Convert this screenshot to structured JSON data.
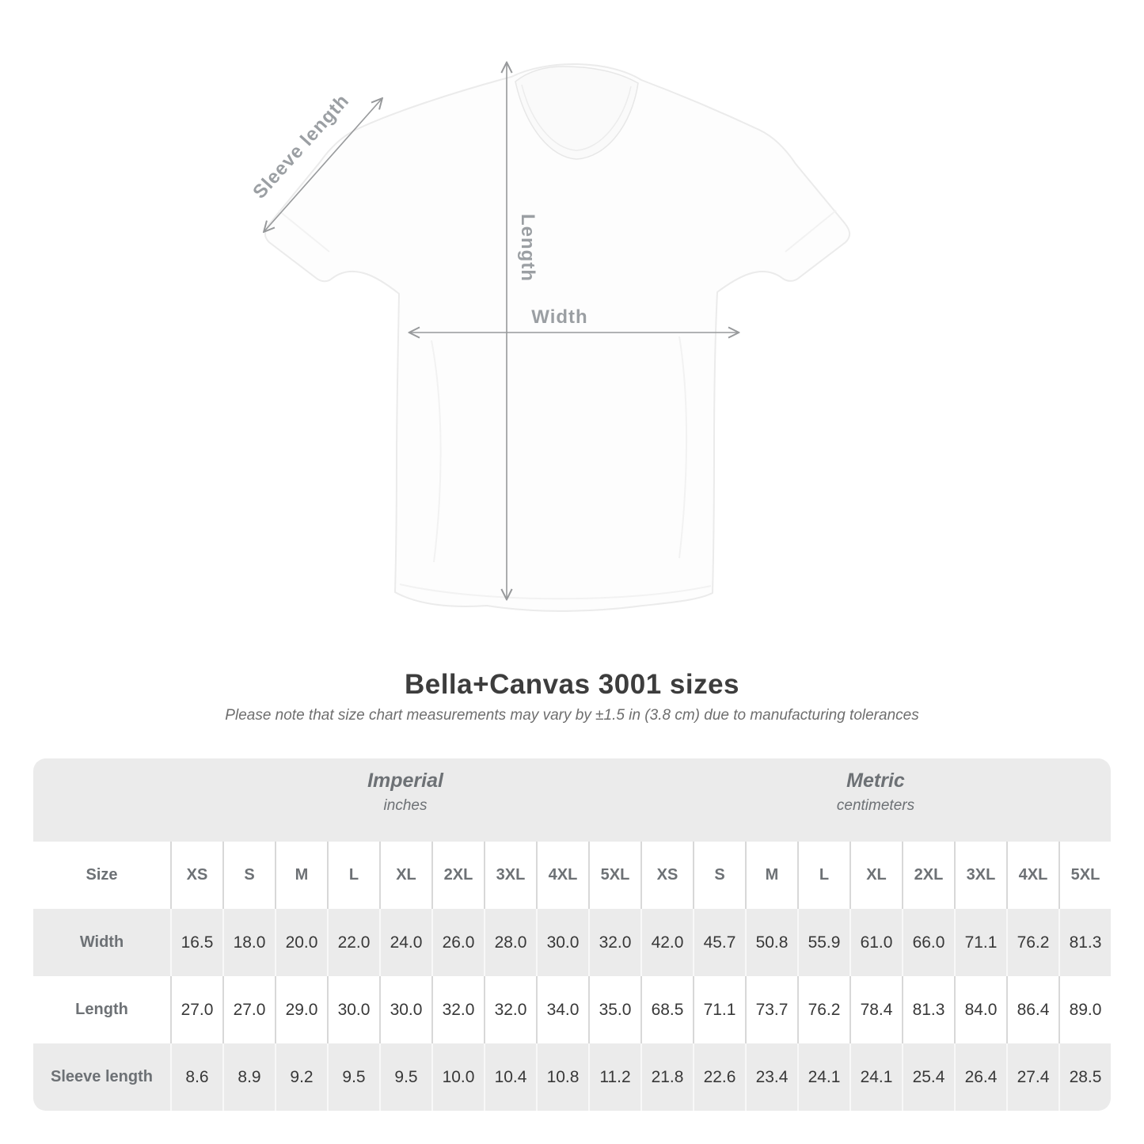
{
  "diagram": {
    "sleeve_length_label": "Sleeve length",
    "length_label": "Length",
    "width_label": "Width"
  },
  "title": "Bella+Canvas 3001 sizes",
  "subtitle": "Please note that size chart measurements may vary by ±1.5 in (3.8 cm) due to manufacturing tolerances",
  "chart_data": {
    "type": "table",
    "title": "Bella+Canvas 3001 sizes",
    "size_column_header": "Size",
    "sizes": [
      "XS",
      "S",
      "M",
      "L",
      "XL",
      "2XL",
      "3XL",
      "4XL",
      "5XL"
    ],
    "sections": [
      {
        "name": "Imperial",
        "unit": "inches"
      },
      {
        "name": "Metric",
        "unit": "centimeters"
      }
    ],
    "rows": [
      {
        "label": "Width",
        "imperial": [
          "16.5",
          "18.0",
          "20.0",
          "22.0",
          "24.0",
          "26.0",
          "28.0",
          "30.0",
          "32.0"
        ],
        "metric": [
          "42.0",
          "45.7",
          "50.8",
          "55.9",
          "61.0",
          "66.0",
          "71.1",
          "76.2",
          "81.3"
        ]
      },
      {
        "label": "Length",
        "imperial": [
          "27.0",
          "27.0",
          "29.0",
          "30.0",
          "30.0",
          "32.0",
          "32.0",
          "34.0",
          "35.0"
        ],
        "metric": [
          "68.5",
          "71.1",
          "73.7",
          "76.2",
          "78.4",
          "81.3",
          "84.0",
          "86.4",
          "89.0"
        ]
      },
      {
        "label": "Sleeve length",
        "imperial": [
          "8.6",
          "8.9",
          "9.2",
          "9.5",
          "9.5",
          "10.0",
          "10.4",
          "10.8",
          "11.2"
        ],
        "metric": [
          "21.8",
          "22.6",
          "23.4",
          "24.1",
          "24.1",
          "25.4",
          "26.4",
          "27.4",
          "28.5"
        ]
      }
    ]
  },
  "colors": {
    "table_band": "#ebebeb",
    "row_separator_on_white": "#d8d8d8",
    "row_separator_on_gray": "#f8f8f8",
    "text_dark": "#383838",
    "text_gray": "#6d7175",
    "diagram_gray": "#9b9fa3",
    "arrow_gray": "#97999b"
  }
}
